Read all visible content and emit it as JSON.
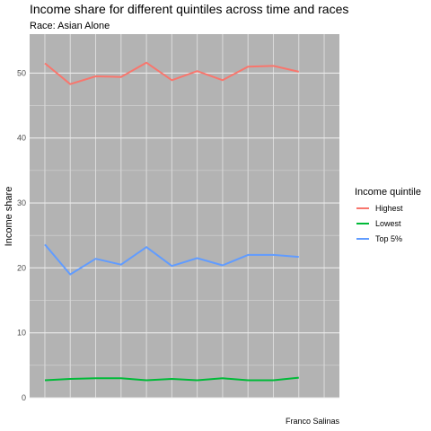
{
  "chart_data": {
    "type": "line",
    "title": "Income share for different quintiles across time and races",
    "subtitle": "Race: Asian Alone",
    "xlabel": "",
    "ylabel": "Income share",
    "caption": "Franco Salinas",
    "x": [
      1,
      2,
      3,
      4,
      5,
      6,
      7,
      8,
      9,
      10,
      11,
      12
    ],
    "xlim": [
      0.4,
      12.6
    ],
    "ylim": [
      0,
      56
    ],
    "yticks": [
      0,
      10,
      20,
      30,
      40,
      50
    ],
    "legend_title": "Income quintile",
    "legend_position": "right",
    "series": [
      {
        "name": "Highest",
        "color": "#f8766d",
        "values": [
          51.5,
          48.3,
          49.5,
          49.4,
          51.6,
          48.9,
          50.3,
          48.9,
          51.0,
          51.1,
          50.2,
          null
        ]
      },
      {
        "name": "Lowest",
        "color": "#00ba38",
        "values": [
          2.7,
          2.9,
          3.0,
          3.0,
          2.7,
          2.9,
          2.7,
          3.0,
          2.7,
          2.7,
          3.1,
          null
        ]
      },
      {
        "name": "Top 5%",
        "color": "#619cff",
        "values": [
          23.6,
          19.0,
          21.4,
          20.5,
          23.2,
          20.3,
          21.5,
          20.4,
          22.0,
          22.0,
          21.7,
          null
        ]
      }
    ]
  }
}
